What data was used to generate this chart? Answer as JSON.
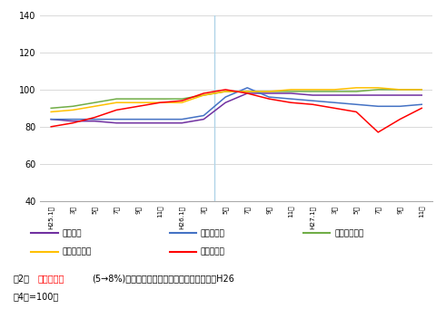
{
  "ylim": [
    40,
    140
  ],
  "yticks": [
    40,
    60,
    80,
    100,
    120,
    140
  ],
  "x_labels": [
    "H25.1月",
    "3月",
    "5月",
    "7月",
    "9月",
    "11月",
    "H26.1月",
    "3月",
    "5月",
    "7月",
    "9月",
    "11月",
    "H27.1月",
    "3月",
    "5月",
    "7月",
    "9月",
    "11月"
  ],
  "vline_x": 7.5,
  "series": {
    "スギ正角": {
      "color": "#7030A0",
      "data": [
        84,
        83,
        83,
        82,
        82,
        82,
        82,
        84,
        93,
        98,
        98,
        98,
        97,
        97,
        97,
        97,
        97,
        97
      ]
    },
    "ヒノキ正角": {
      "color": "#4472C4",
      "data": [
        84,
        84,
        84,
        84,
        84,
        84,
        84,
        86,
        96,
        101,
        96,
        95,
        94,
        93,
        92,
        91,
        91,
        92
      ]
    },
    "ベイツガ正角": {
      "color": "#70AD47",
      "data": [
        90,
        91,
        93,
        95,
        95,
        95,
        95,
        97,
        99,
        99,
        99,
        99,
        99,
        99,
        99,
        100,
        100,
        100
      ]
    },
    "ベイマツ平角": {
      "color": "#FFC000",
      "data": [
        88,
        89,
        91,
        93,
        93,
        93,
        93,
        97,
        99,
        99,
        99,
        100,
        100,
        100,
        101,
        101,
        100,
        100
      ]
    },
    "針葉樹合板": {
      "color": "#FF0000",
      "data": [
        80,
        82,
        85,
        89,
        91,
        93,
        94,
        98,
        100,
        98,
        95,
        93,
        92,
        90,
        88,
        77,
        84,
        90
      ]
    }
  },
  "legend_row1": [
    "スギ正角",
    "ヒノキ正角",
    "ベイツガ正角"
  ],
  "legend_row2": [
    "ベイマツ平角",
    "針葉樹合板"
  ],
  "vline_color": "#B0D4E8",
  "grid_color": "#D9D9D9",
  "caption_prefix": "図2．",
  "caption_red": "消費税増税",
  "caption_rest": "(5→8%)前後における木材製品価格の変化率（H26",
  "caption_line2": "年4月=100）"
}
